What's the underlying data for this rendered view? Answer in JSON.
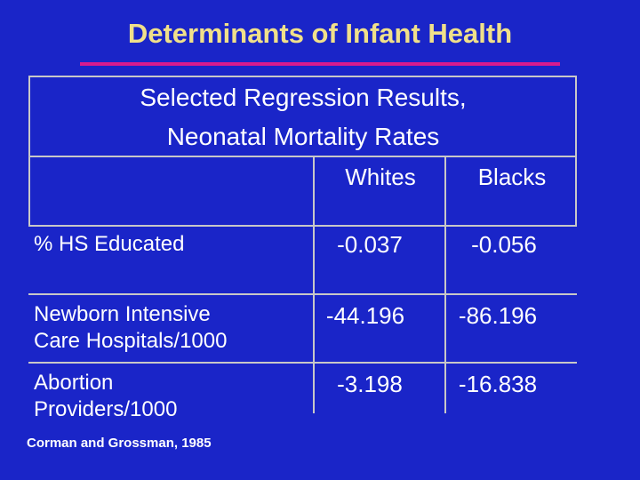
{
  "title": "Determinants of Infant Health",
  "subtitle_line1": "Selected Regression Results,",
  "subtitle_line2": "Neonatal Mortality Rates",
  "table": {
    "col_whites": "Whites",
    "col_blacks": "Blacks",
    "rows": [
      {
        "label": "% HS Educated",
        "label_line2": "",
        "whites": "-0.037",
        "blacks": "-0.056"
      },
      {
        "label": "Newborn Intensive",
        "label_line2": "Care Hospitals/1000",
        "whites": "-44.196",
        "blacks": "-86.196"
      },
      {
        "label": "Abortion",
        "label_line2": "Providers/1000",
        "whites": "-3.198",
        "blacks": "-16.838"
      }
    ]
  },
  "citation": "Corman and Grossman, 1985",
  "colors": {
    "background": "#1a25c8",
    "title": "#f0e08a",
    "rule": "#d81b8e",
    "text": "#ffffff"
  }
}
